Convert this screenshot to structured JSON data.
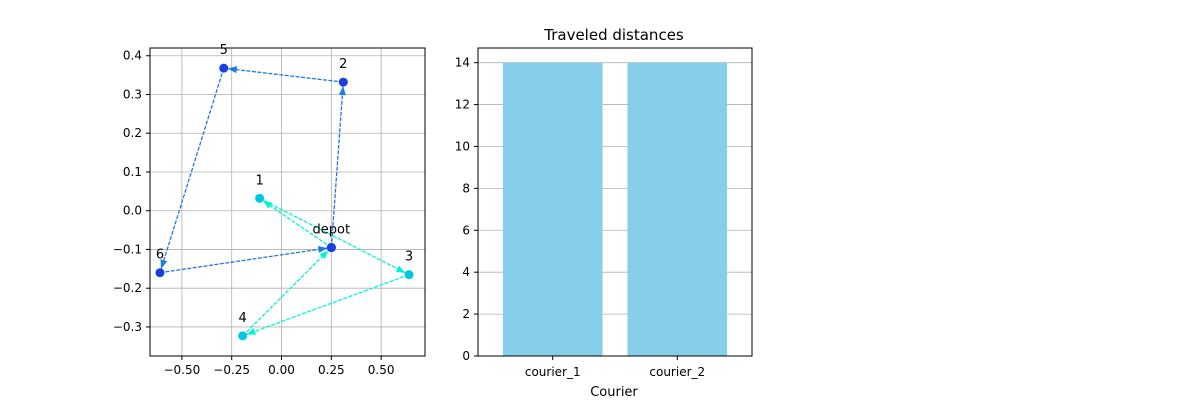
{
  "chart_data": [
    {
      "type": "scatter",
      "title": "",
      "xlabel": "",
      "ylabel": "",
      "xlim": [
        -0.66,
        0.72
      ],
      "ylim": [
        -0.375,
        0.42
      ],
      "xticks": [
        -0.5,
        -0.25,
        0.0,
        0.25,
        0.5
      ],
      "xtick_labels": [
        "−0.50",
        "−0.25",
        "0.00",
        "0.25",
        "0.50"
      ],
      "yticks": [
        -0.3,
        -0.2,
        -0.1,
        0.0,
        0.1,
        0.2,
        0.3,
        0.4
      ],
      "ytick_labels": [
        "−0.3",
        "−0.2",
        "−0.1",
        "0.0",
        "0.1",
        "0.2",
        "0.3",
        "0.4"
      ],
      "grid": true,
      "nodes": [
        {
          "label": "depot",
          "x": 0.25,
          "y": -0.095
        },
        {
          "label": "1",
          "x": -0.11,
          "y": 0.032
        },
        {
          "label": "2",
          "x": 0.31,
          "y": 0.332
        },
        {
          "label": "3",
          "x": 0.64,
          "y": -0.165
        },
        {
          "label": "4",
          "x": -0.195,
          "y": -0.323
        },
        {
          "label": "5",
          "x": -0.29,
          "y": 0.368
        },
        {
          "label": "6",
          "x": -0.61,
          "y": -0.16
        }
      ],
      "routes": [
        {
          "color": "#00f5d4",
          "marker_color": "#00c8e0",
          "path": [
            "depot",
            "1",
            "3",
            "4",
            "depot"
          ]
        },
        {
          "color": "#1f7ae0",
          "marker_color": "#1a3fe0",
          "path": [
            "depot",
            "2",
            "5",
            "6",
            "depot"
          ]
        }
      ]
    },
    {
      "type": "bar",
      "title": "Traveled distances",
      "xlabel": "Courier",
      "ylabel": "",
      "categories": [
        "courier_1",
        "courier_2"
      ],
      "values": [
        14,
        14
      ],
      "ylim": [
        0,
        14.7
      ],
      "yticks": [
        0,
        2,
        4,
        6,
        8,
        10,
        12,
        14
      ],
      "grid": true,
      "bar_color": "#87ceeb"
    }
  ]
}
